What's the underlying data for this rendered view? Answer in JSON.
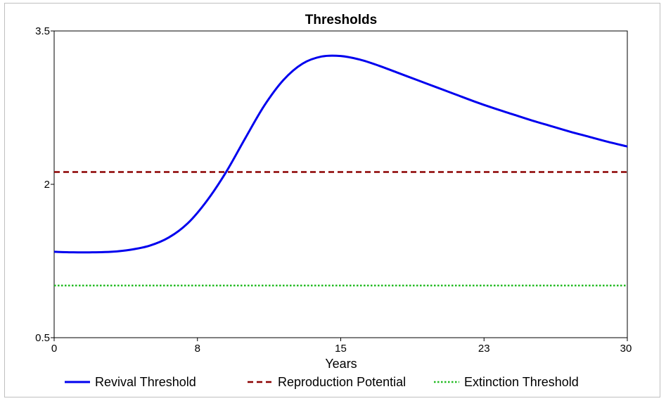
{
  "chart_data": {
    "type": "line",
    "title": "Thresholds",
    "xlabel": "Years",
    "ylabel": "",
    "xlim": [
      0,
      30
    ],
    "ylim": [
      0.5,
      3.5
    ],
    "xticks": [
      0,
      7.5,
      15,
      22.5,
      30
    ],
    "xtick_labels": [
      "0",
      "8",
      "15",
      "23",
      "30"
    ],
    "yticks": [
      0.5,
      2,
      3.5
    ],
    "ytick_labels": [
      "0.5",
      "2",
      "3.5"
    ],
    "grid": false,
    "legend_position": "bottom",
    "series": [
      {
        "name": "Revival Threshold",
        "color": "#0000ee",
        "style": "solid",
        "x": [
          0,
          1,
          2,
          3,
          4,
          5,
          6,
          7,
          8,
          9,
          10,
          11,
          12,
          13,
          14,
          15,
          16,
          17,
          18,
          19,
          20,
          21,
          22,
          23,
          24,
          25,
          26,
          27,
          28,
          29,
          30
        ],
        "y": [
          1.34,
          1.335,
          1.335,
          1.34,
          1.36,
          1.4,
          1.48,
          1.62,
          1.84,
          2.12,
          2.45,
          2.77,
          3.02,
          3.18,
          3.25,
          3.255,
          3.22,
          3.16,
          3.09,
          3.02,
          2.95,
          2.88,
          2.81,
          2.745,
          2.685,
          2.625,
          2.57,
          2.515,
          2.465,
          2.415,
          2.37
        ]
      },
      {
        "name": "Reproduction Potential",
        "color": "#8b0000",
        "style": "dashed",
        "x": [
          0,
          30
        ],
        "y": [
          2.12,
          2.12
        ]
      },
      {
        "name": "Extinction Threshold",
        "color": "#22bb22",
        "style": "dotted",
        "x": [
          0,
          30
        ],
        "y": [
          1.01,
          1.01
        ]
      }
    ]
  }
}
